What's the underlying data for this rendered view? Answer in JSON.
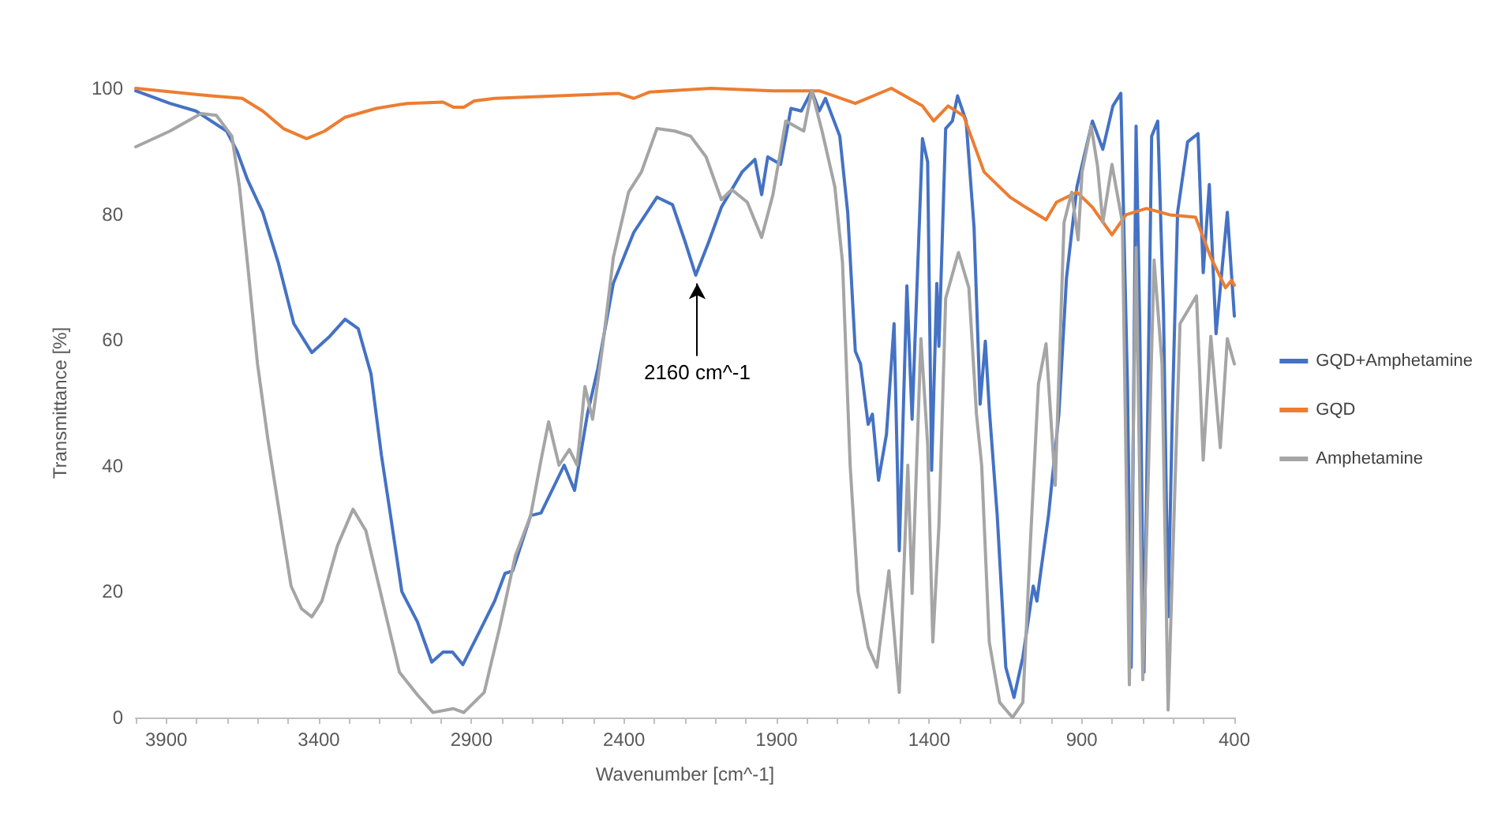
{
  "chart_data": {
    "type": "line",
    "xlabel": "Wavenumber [cm^-1]",
    "ylabel": "Transmittance [%]",
    "xlim": [
      4000,
      400
    ],
    "ylim": [
      0,
      100
    ],
    "xticks": [
      {
        "value": 4000,
        "label": null
      },
      3900,
      {
        "value": 3800,
        "label": null
      },
      {
        "value": 3700,
        "label": null
      },
      {
        "value": 3600,
        "label": null
      },
      {
        "value": 3500,
        "label": null
      },
      3400,
      {
        "value": 3300,
        "label": null
      },
      {
        "value": 3200,
        "label": null
      },
      {
        "value": 3100,
        "label": null
      },
      {
        "value": 3000,
        "label": null
      },
      2900,
      {
        "value": 2800,
        "label": null
      },
      {
        "value": 2700,
        "label": null
      },
      {
        "value": 2600,
        "label": null
      },
      {
        "value": 2500,
        "label": null
      },
      2400,
      {
        "value": 2300,
        "label": null
      },
      {
        "value": 2200,
        "label": null
      },
      {
        "value": 2100,
        "label": null
      },
      {
        "value": 2000,
        "label": null
      },
      1900,
      {
        "value": 1800,
        "label": null
      },
      {
        "value": 1700,
        "label": null
      },
      {
        "value": 1600,
        "label": null
      },
      {
        "value": 1500,
        "label": null
      },
      1400,
      {
        "value": 1300,
        "label": null
      },
      {
        "value": 1200,
        "label": null
      },
      {
        "value": 1100,
        "label": null
      },
      {
        "value": 1000,
        "label": null
      },
      900,
      {
        "value": 800,
        "label": null
      },
      {
        "value": 700,
        "label": null
      },
      {
        "value": 600,
        "label": null
      },
      {
        "value": 500,
        "label": null
      },
      400
    ],
    "yticks": [
      0,
      20,
      40,
      60,
      80,
      100
    ],
    "grid": false,
    "legend": "right",
    "marker": "none",
    "line_style": "solid",
    "annotations": [
      {
        "text": "2160 cm^-1",
        "x": 2160,
        "y": 70
      }
    ],
    "series": [
      {
        "name": "GQD+Amphetamine",
        "color": "#4472c4",
        "x": [
          4000,
          3888,
          3803,
          3702,
          3668,
          3634,
          3584,
          3533,
          3482,
          3423,
          3364,
          3314,
          3271,
          3229,
          3195,
          3170,
          3128,
          3077,
          3030,
          2993,
          2962,
          2928,
          2874,
          2824,
          2790,
          2765,
          2706,
          2672,
          2596,
          2562,
          2520,
          2486,
          2435,
          2368,
          2292,
          2241,
          2199,
          2165,
          2123,
          2081,
          2013,
          1971,
          1949,
          1929,
          1887,
          1853,
          1819,
          1785,
          1760,
          1740,
          1693,
          1667,
          1642,
          1625,
          1600,
          1586,
          1566,
          1540,
          1515,
          1498,
          1473,
          1456,
          1422,
          1405,
          1392,
          1375,
          1368,
          1346,
          1324,
          1307,
          1279,
          1253,
          1233,
          1216,
          1203,
          1177,
          1149,
          1122,
          1093,
          1059,
          1047,
          1034,
          1009,
          975,
          950,
          916,
          865,
          831,
          798,
          772,
          750,
          738,
          722,
          710,
          696,
          671,
          651,
          632,
          617,
          603,
          586,
          553,
          519,
          502,
          482,
          460,
          423,
          400
        ],
        "values": [
          99.6,
          97.6,
          96.4,
          93.2,
          90,
          85.5,
          80.3,
          72.3,
          62.6,
          58,
          60.6,
          63.3,
          61.8,
          54.6,
          41.7,
          33.7,
          20,
          15.2,
          8.8,
          10.4,
          10.4,
          8.4,
          13.6,
          18.5,
          22.9,
          23.3,
          32.1,
          32.5,
          40.1,
          36.1,
          48.2,
          55.4,
          69,
          77.1,
          82.7,
          81.5,
          75.5,
          70.3,
          75.5,
          81.1,
          86.7,
          88.7,
          83.1,
          89.1,
          87.9,
          96.8,
          96.4,
          99.6,
          96.4,
          98.4,
          92.4,
          80.3,
          58.2,
          56.2,
          46.6,
          48.2,
          37.7,
          45,
          62.6,
          26.5,
          68.6,
          47.4,
          92,
          88.3,
          39.3,
          69,
          59,
          93.6,
          94.8,
          98.8,
          94.8,
          77.9,
          49.8,
          59.8,
          49,
          32.1,
          8,
          3.2,
          9.6,
          20.9,
          18.5,
          23.3,
          32.1,
          48.2,
          69.9,
          84.3,
          94.8,
          90.3,
          97.2,
          99.2,
          52.2,
          8,
          94,
          62.6,
          7.2,
          92.4,
          94.8,
          64.2,
          16,
          49,
          80.3,
          91.5,
          92.8,
          70.7,
          84.7,
          61,
          80.3,
          63.8
        ]
      },
      {
        "name": "GQD",
        "color": "#ed7d31",
        "x": [
          4000,
          3753,
          3651,
          3584,
          3516,
          3440,
          3381,
          3314,
          3212,
          3111,
          2993,
          2959,
          2925,
          2891,
          2824,
          2419,
          2368,
          2317,
          2115,
          1912,
          1760,
          1642,
          1524,
          1422,
          1385,
          1338,
          1287,
          1220,
          1135,
          1084,
          1017,
          983,
          916,
          865,
          801,
          755,
          688,
          612,
          527,
          477,
          429,
          409,
          400
        ],
        "values": [
          100,
          98.8,
          98.4,
          96.4,
          93.6,
          92,
          93.2,
          95.4,
          96.8,
          97.6,
          97.8,
          97,
          97,
          98,
          98.4,
          99.2,
          98.4,
          99.4,
          100,
          99.6,
          99.6,
          97.6,
          100,
          97.2,
          94.8,
          97.2,
          95.6,
          86.7,
          82.7,
          81.1,
          79.1,
          81.9,
          83.5,
          81.1,
          76.7,
          79.9,
          80.9,
          79.9,
          79.5,
          73.1,
          68.3,
          69.5,
          68.7
        ]
      },
      {
        "name": "Amphetamine",
        "color": "#a5a5a5",
        "x": [
          4000,
          3888,
          3786,
          3736,
          3685,
          3660,
          3634,
          3601,
          3567,
          3533,
          3491,
          3457,
          3423,
          3390,
          3339,
          3288,
          3246,
          3195,
          3136,
          3077,
          3026,
          2959,
          2925,
          2858,
          2807,
          2756,
          2706,
          2672,
          2647,
          2613,
          2579,
          2554,
          2528,
          2503,
          2469,
          2435,
          2385,
          2343,
          2292,
          2233,
          2182,
          2131,
          2081,
          2047,
          1996,
          1949,
          1912,
          1870,
          1811,
          1785,
          1751,
          1709,
          1684,
          1659,
          1633,
          1600,
          1571,
          1532,
          1498,
          1470,
          1456,
          1427,
          1405,
          1388,
          1368,
          1346,
          1304,
          1270,
          1245,
          1228,
          1203,
          1169,
          1127,
          1093,
          1068,
          1042,
          1017,
          987,
          958,
          933,
          912,
          899,
          869,
          848,
          831,
          801,
          767,
          744,
          722,
          700,
          663,
          637,
          617,
          595,
          578,
          524,
          502,
          477,
          446,
          423,
          400
        ],
        "values": [
          90.7,
          93.2,
          96,
          95.7,
          92.4,
          84.3,
          72.3,
          56.2,
          44.2,
          33.7,
          20.9,
          17.3,
          16,
          18.5,
          27.3,
          33.1,
          29.7,
          19.3,
          7.2,
          3.6,
          0.8,
          1.4,
          0.8,
          4,
          14.4,
          25.7,
          32.1,
          40.9,
          47,
          40.1,
          42.6,
          40.1,
          52.6,
          47.4,
          59.4,
          73.1,
          83.5,
          86.7,
          93.6,
          93.2,
          92.4,
          89.1,
          82.3,
          83.9,
          81.9,
          76.3,
          83.1,
          94.8,
          93.2,
          99.6,
          93.2,
          84.3,
          72.3,
          40.1,
          20,
          11.2,
          8,
          23.3,
          4,
          40.1,
          19.7,
          60.2,
          43.4,
          12,
          30.5,
          66.6,
          73.9,
          68.3,
          48.2,
          40.1,
          12,
          2.4,
          0,
          2.4,
          28.1,
          53,
          59.4,
          36.9,
          78.7,
          83.5,
          75.9,
          86.7,
          94,
          87.5,
          78.7,
          87.9,
          78.7,
          5.2,
          74.7,
          6,
          72.7,
          56.2,
          1.2,
          36.1,
          62.6,
          67,
          40.9,
          60.6,
          42.9,
          60.2,
          56.2
        ]
      }
    ]
  }
}
